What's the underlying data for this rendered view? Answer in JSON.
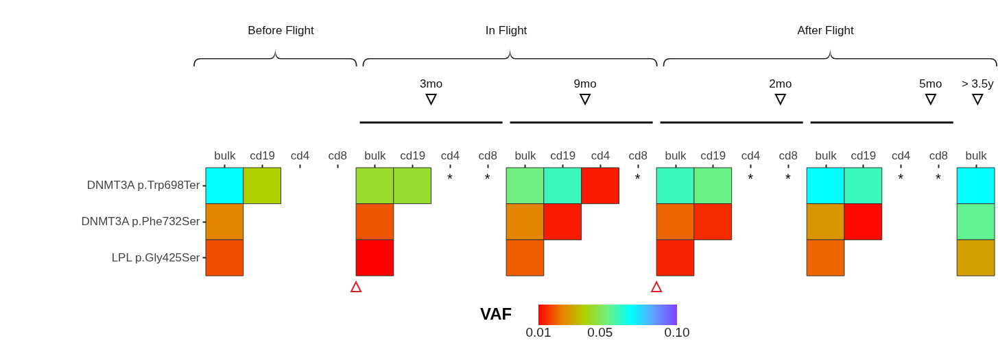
{
  "chart_data": {
    "type": "heatmap",
    "categories": [
      "bulk",
      "cd19",
      "cd4",
      "cd8",
      "bulk",
      "cd19",
      "cd4",
      "cd8",
      "bulk",
      "cd19",
      "cd4",
      "cd8",
      "bulk",
      "cd19",
      "cd4",
      "cd8",
      "bulk",
      "cd19",
      "cd4",
      "cd8",
      "bulk"
    ],
    "y_categories": [
      "DNMT3A p.Trp698Ter",
      "DNMT3A p.Phe732Ser",
      "LPL p.Gly425Ser"
    ],
    "cells": [
      [
        0.07,
        0.04,
        null,
        null,
        0.045,
        0.046,
        null,
        null,
        0.055,
        0.062,
        0.013,
        null,
        0.062,
        0.056,
        null,
        null,
        0.07,
        0.062,
        null,
        null,
        0.07
      ],
      [
        0.026,
        null,
        null,
        null,
        0.02,
        null,
        null,
        null,
        0.026,
        0.013,
        null,
        null,
        0.022,
        0.015,
        null,
        null,
        0.029,
        0.011,
        null,
        null,
        0.057
      ],
      [
        0.019,
        null,
        null,
        null,
        0.01,
        null,
        null,
        null,
        0.021,
        null,
        null,
        null,
        0.014,
        null,
        null,
        null,
        0.022,
        null,
        null,
        null,
        0.031
      ]
    ],
    "cell_labels": [
      [
        null,
        null,
        null,
        null,
        null,
        null,
        "*",
        "*",
        null,
        null,
        null,
        "*",
        null,
        null,
        "*",
        "*",
        null,
        null,
        "*",
        "*",
        null
      ],
      [
        null,
        null,
        null,
        null,
        null,
        null,
        null,
        null,
        null,
        null,
        null,
        null,
        null,
        null,
        null,
        null,
        null,
        null,
        null,
        null,
        null
      ],
      [
        null,
        null,
        null,
        null,
        null,
        null,
        null,
        null,
        null,
        null,
        null,
        null,
        null,
        null,
        null,
        null,
        null,
        null,
        null,
        null,
        null
      ]
    ],
    "clabel": "VAF",
    "clim": [
      0.01,
      0.1
    ],
    "cticks": [
      {
        "value": 0.01,
        "label": "0.01"
      },
      {
        "value": 0.05,
        "label": "0.05"
      },
      {
        "value": 0.1,
        "label": "0.10"
      }
    ],
    "annotations": [
      "Before Flight",
      "In Flight",
      "After Flight",
      "3mo",
      "9mo",
      "2mo",
      "5mo",
      "> 3.5y"
    ]
  }
}
